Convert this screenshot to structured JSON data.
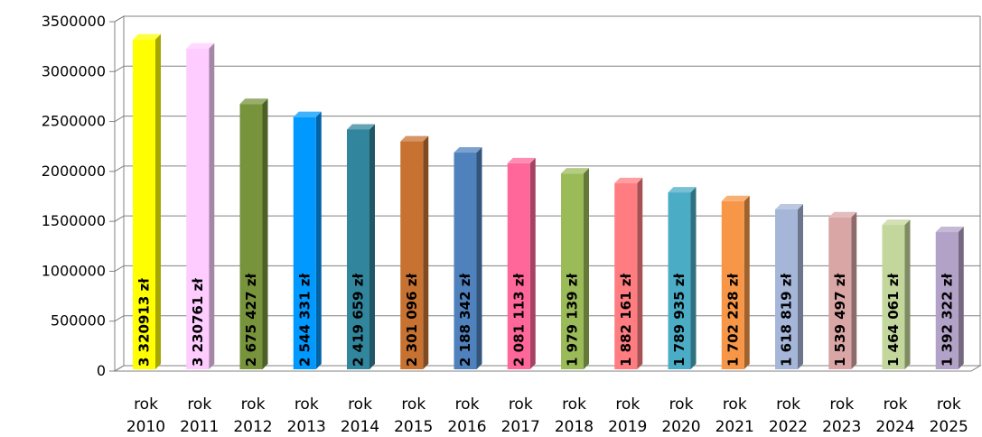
{
  "chart_data": {
    "type": "bar",
    "categories": [
      [
        "rok",
        "2010"
      ],
      [
        "rok",
        "2011"
      ],
      [
        "rok",
        "2012"
      ],
      [
        "rok",
        "2013"
      ],
      [
        "rok",
        "2014"
      ],
      [
        "rok",
        "2015"
      ],
      [
        "rok",
        "2016"
      ],
      [
        "rok",
        "2017"
      ],
      [
        "rok",
        "2018"
      ],
      [
        "rok",
        "2019"
      ],
      [
        "rok",
        "2020"
      ],
      [
        "rok",
        "2021"
      ],
      [
        "rok",
        "2022"
      ],
      [
        "rok",
        "2023"
      ],
      [
        "rok",
        "2024"
      ],
      [
        "rok",
        "2025"
      ]
    ],
    "values": [
      3320913,
      3230761,
      2675427,
      2544331,
      2419659,
      2301096,
      2188342,
      2081113,
      1979139,
      1882161,
      1789935,
      1702228,
      1618819,
      1539497,
      1464061,
      1392322
    ],
    "data_labels": [
      "3 320913 zł",
      "3 230761 zł",
      "2 675 427 zł",
      "2 544 331 zł",
      "2 419 659 zł",
      "2 301 096 zł",
      "2 188 342 zł",
      "2 081 113 zł",
      "1 979 139 zł",
      "1 882 161 zł",
      "1 789 935 zł",
      "1 702 228 zł",
      "1 618 819 zł",
      "1 539 497 zł",
      "1 464 061 zł",
      "1 392 322 zł"
    ],
    "colors": [
      "#ffff00",
      "#ffccff",
      "#77933c",
      "#0099ff",
      "#31859c",
      "#c77231",
      "#4f81bd",
      "#ff6699",
      "#9bbb59",
      "#ff7c80",
      "#4bacc6",
      "#f79646",
      "#a5b6d8",
      "#d9a5a5",
      "#c3d69b",
      "#b3a2c7"
    ],
    "y_ticks": [
      "0",
      "500000",
      "1000000",
      "1500000",
      "2000000",
      "2500000",
      "3000000",
      "3500000"
    ],
    "ylim": [
      0,
      3500000
    ],
    "grid": true,
    "legend": "none",
    "title": "",
    "xlabel": "",
    "ylabel": ""
  }
}
